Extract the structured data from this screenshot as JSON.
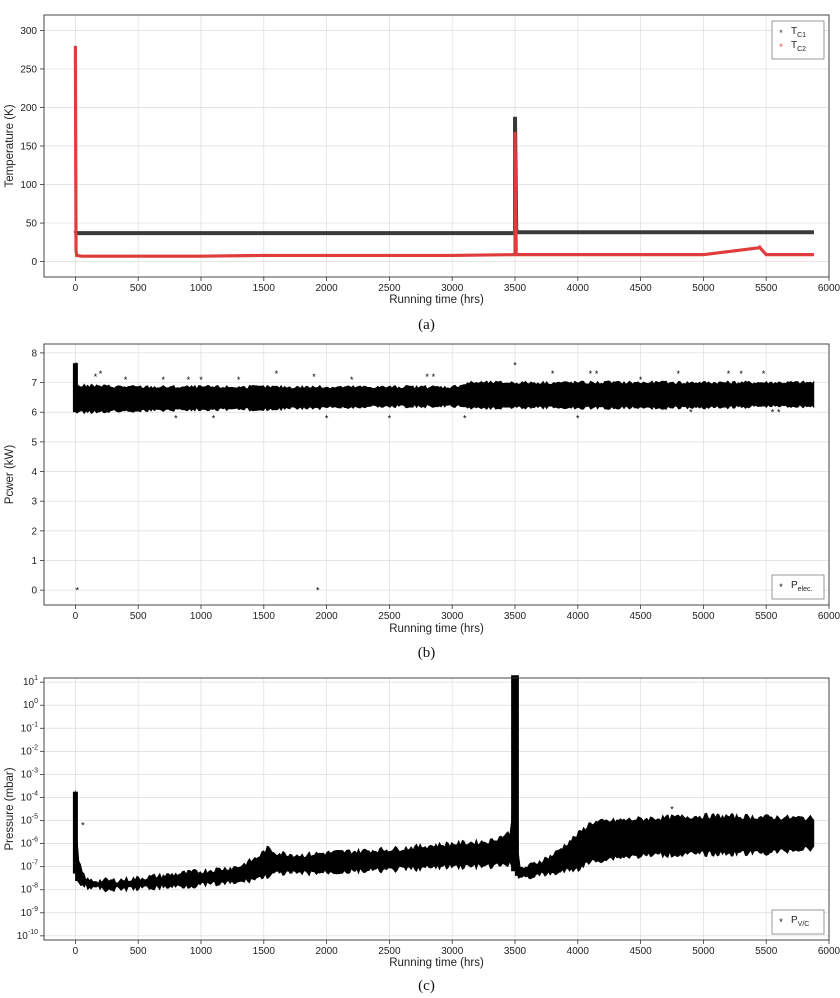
{
  "chart_data": [
    {
      "type": "scatter",
      "caption": "(a)",
      "xlabel": "Running time (hrs)",
      "ylabel": "Temperature (K)",
      "xlim": [
        -250,
        6000
      ],
      "ylim": [
        -20,
        320
      ],
      "xticks": [
        0,
        500,
        1000,
        1500,
        2000,
        2500,
        3000,
        3500,
        4000,
        4500,
        5000,
        5500,
        6000
      ],
      "yticks": [
        0,
        50,
        100,
        150,
        200,
        250,
        300
      ],
      "grid": true,
      "legend_position": "top-right",
      "legend": [
        {
          "base": "T",
          "sub": "C1"
        },
        {
          "base": "T",
          "sub": "C2"
        }
      ],
      "series": [
        {
          "name": "TC1",
          "color": "#3a3a3a",
          "x": [
            0,
            5,
            10,
            50,
            500,
            1000,
            1500,
            2000,
            2500,
            3000,
            3490,
            3500,
            3500,
            3510,
            3600,
            4000,
            4500,
            5000,
            5500,
            5880
          ],
          "y": [
            40,
            38,
            37,
            37,
            37,
            37,
            37,
            37,
            37,
            37,
            37,
            37,
            188,
            38,
            38,
            38,
            38,
            38,
            38,
            38
          ]
        },
        {
          "name": "TC2",
          "color": "#e03c3c",
          "x": [
            0,
            5,
            10,
            50,
            500,
            1000,
            1500,
            2000,
            2500,
            3000,
            3490,
            3500,
            3500,
            3510,
            3600,
            4000,
            4500,
            5000,
            5450,
            5500,
            5880
          ],
          "y": [
            280,
            15,
            8,
            7,
            7,
            7,
            8,
            8,
            8,
            8,
            9,
            9,
            168,
            9,
            9,
            9,
            9,
            9,
            18,
            9,
            9
          ]
        }
      ]
    },
    {
      "type": "scatter",
      "caption": "(b)",
      "xlabel": "Running time (hrs)",
      "ylabel": "Power (kW)",
      "ylabel_text": "Pcwer (kW)",
      "xlim": [
        -250,
        6000
      ],
      "ylim": [
        -0.5,
        8.3
      ],
      "xticks": [
        0,
        500,
        1000,
        1500,
        2000,
        2500,
        3000,
        3500,
        4000,
        4500,
        5000,
        5500,
        6000
      ],
      "yticks": [
        0,
        1,
        2,
        3,
        4,
        5,
        6,
        7,
        8
      ],
      "grid": true,
      "legend_position": "bottom-right",
      "legend": [
        {
          "base": "P",
          "sub": "elec."
        }
      ],
      "series": [
        {
          "name": "Pelec.",
          "color": "#000000",
          "band": {
            "x": [
              0,
              500,
              1000,
              1500,
              2000,
              2500,
              3000,
              3150,
              3500,
              4000,
              4500,
              5000,
              5500,
              5880
            ],
            "low": [
              6.0,
              6.05,
              6.1,
              6.1,
              6.15,
              6.2,
              6.2,
              6.15,
              6.15,
              6.15,
              6.15,
              6.15,
              6.2,
              6.2
            ],
            "high": [
              6.9,
              6.85,
              6.85,
              6.85,
              6.85,
              6.85,
              6.85,
              7.0,
              7.0,
              7.0,
              7.0,
              7.0,
              7.0,
              7.0
            ]
          },
          "outliers": [
            [
              5,
              7.6
            ],
            [
              15,
              0.0
            ],
            [
              200,
              7.3
            ],
            [
              160,
              7.2
            ],
            [
              400,
              7.1
            ],
            [
              700,
              7.1
            ],
            [
              800,
              5.8
            ],
            [
              900,
              7.1
            ],
            [
              1000,
              7.1
            ],
            [
              1100,
              5.8
            ],
            [
              1300,
              7.1
            ],
            [
              1600,
              7.3
            ],
            [
              1900,
              7.2
            ],
            [
              1930,
              0.0
            ],
            [
              2000,
              5.8
            ],
            [
              2200,
              7.1
            ],
            [
              2500,
              5.8
            ],
            [
              2800,
              7.2
            ],
            [
              2850,
              7.2
            ],
            [
              3100,
              5.8
            ],
            [
              3500,
              7.6
            ],
            [
              3800,
              7.3
            ],
            [
              4000,
              5.8
            ],
            [
              4100,
              7.3
            ],
            [
              4150,
              7.3
            ],
            [
              4500,
              7.1
            ],
            [
              4800,
              7.3
            ],
            [
              4900,
              6.0
            ],
            [
              5200,
              7.3
            ],
            [
              5300,
              7.3
            ],
            [
              5480,
              7.3
            ],
            [
              5550,
              6.0
            ],
            [
              5600,
              6.0
            ]
          ]
        }
      ]
    },
    {
      "type": "scatter",
      "caption": "(c)",
      "xlabel": "Running time (hrs)",
      "ylabel": "Pressure (mbar)",
      "xlim": [
        -250,
        6000
      ],
      "yscale": "log",
      "ylim_exponent": [
        -10,
        1
      ],
      "xticks": [
        0,
        500,
        1000,
        1500,
        2000,
        2500,
        3000,
        3500,
        4000,
        4500,
        5000,
        5500,
        6000
      ],
      "ytick_exponents": [
        1,
        0,
        -1,
        -2,
        -3,
        -4,
        -5,
        -6,
        -7,
        -8,
        -9,
        -10
      ],
      "grid": true,
      "legend_position": "bottom-right",
      "legend": [
        {
          "base": "P",
          "sub": "V/C"
        }
      ],
      "series": [
        {
          "name": "PV/C",
          "color": "#000000",
          "band": {
            "x": [
              0,
              20,
              60,
              100,
              300,
              500,
              1000,
              1300,
              1450,
              1530,
              1600,
              1800,
              2000,
              2500,
              3000,
              3300,
              3470,
              3500,
              3530,
              3600,
              3800,
              4000,
              4100,
              4300,
              4600,
              5000,
              5500,
              5880
            ],
            "low_exp": [
              -7.5,
              -7.6,
              -7.8,
              -7.9,
              -8.0,
              -7.95,
              -7.8,
              -7.7,
              -7.5,
              -7.4,
              -7.3,
              -7.3,
              -7.25,
              -7.15,
              -7.0,
              -7.0,
              -6.9,
              -7.2,
              -7.4,
              -7.45,
              -7.3,
              -7.1,
              -6.8,
              -6.6,
              -6.5,
              -6.45,
              -6.4,
              -6.2
            ],
            "high_exp": [
              -3.8,
              -6.7,
              -7.3,
              -7.6,
              -7.6,
              -7.5,
              -7.2,
              -7.0,
              -6.6,
              -6.2,
              -6.4,
              -6.5,
              -6.4,
              -6.25,
              -6.0,
              -5.9,
              -5.5,
              1.3,
              -7.1,
              -7.0,
              -6.5,
              -5.6,
              -5.1,
              -5.0,
              -4.9,
              -4.8,
              -4.85,
              -4.9
            ]
          },
          "outliers": [
            [
              4750,
              -4.5
            ],
            [
              200,
              -7.8
            ],
            [
              60,
              -5.2
            ]
          ]
        }
      ]
    }
  ]
}
